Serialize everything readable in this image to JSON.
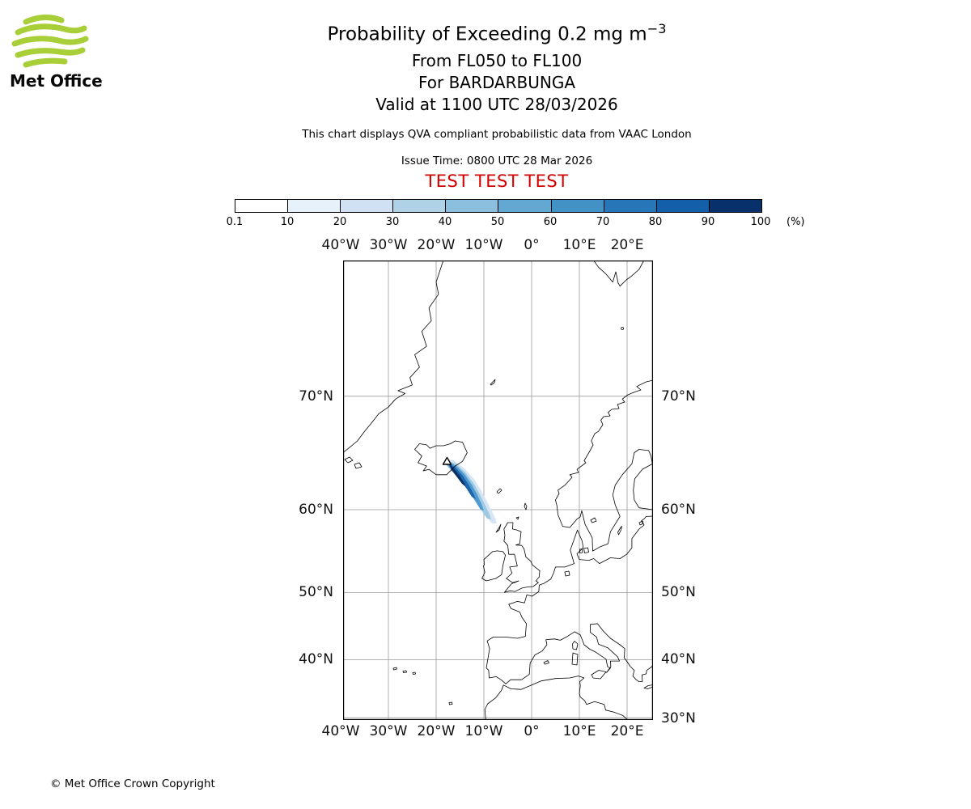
{
  "logo": {
    "brand": "Met Office"
  },
  "header": {
    "title_main": "Probability of Exceeding 0.2 mg m",
    "title_sup": "−3",
    "line_flight_levels": "From FL050 to FL100",
    "line_volcano": "For BARDARBUNGA",
    "line_valid": "Valid at 1100 UTC 28/03/2026",
    "note": "This chart displays QVA compliant probabilistic data from VAAC London",
    "issue_time": "Issue Time: 0800 UTC 28 Mar 2026",
    "test_banner": "TEST TEST TEST"
  },
  "colorbar": {
    "unit_label": "(%)",
    "ticks": [
      "0.1",
      "10",
      "20",
      "30",
      "40",
      "50",
      "60",
      "70",
      "80",
      "90",
      "100"
    ],
    "segment_colors": [
      "#ffffff",
      "#e7f1fa",
      "#cfe1f2",
      "#b0d2e7",
      "#8bbfdd",
      "#62a8d2",
      "#4292c6",
      "#2676b8",
      "#1460a8",
      "#08306b"
    ]
  },
  "map": {
    "lon_labels": [
      "40°W",
      "30°W",
      "20°W",
      "10°W",
      "0°",
      "10°E",
      "20°E"
    ],
    "lat_labels": [
      "70°N",
      "60°N",
      "50°N",
      "40°N",
      "30°N"
    ]
  },
  "footer": {
    "copyright": "© Met Office Crown Copyright"
  },
  "colors": {
    "test_banner_red": "#d10000",
    "logo_green": "#a8ce38",
    "plume_fill_levels": [
      "#d6e6f4",
      "#9ec9e2",
      "#4f9bd1",
      "#1e64ab",
      "#0a3168"
    ]
  },
  "chart_data": {
    "type": "heatmap",
    "subtype": "probability-contour-map",
    "title": "Probability of Exceeding 0.2 mg m−3",
    "flight_levels": "FL050 to FL100",
    "volcano": {
      "name": "BARDARBUNGA",
      "marker": "triangle",
      "approx_lat_n": 64.6,
      "approx_lon_e": -17.5
    },
    "valid_time": "1100 UTC 28/03/2026",
    "issue_time": "0800 UTC 28 Mar 2026",
    "source_note": "QVA compliant probabilistic data from VAAC London",
    "probability_scale_percent": [
      0.1,
      10,
      20,
      30,
      40,
      50,
      60,
      70,
      80,
      90,
      100
    ],
    "map_extent": {
      "lon_min_e": -39.5,
      "lon_max_e": 25.4,
      "lat_min_n": 30,
      "lat_max_n": 77.8,
      "projection": "mercator",
      "grid_spacing_deg": 10
    },
    "plume": {
      "origin": "Bardarbunga volcano, Iceland (triangle marker)",
      "direction": "southeast from Iceland over the North Atlantic",
      "approx_extent": "from about 64.6N 17.5W tapering to about 59.5N 9W",
      "highest_probability": "90-100% (dark navy) immediately southeast of the volcano, fading to under 10% (pale blue) at the plume tip"
    }
  }
}
